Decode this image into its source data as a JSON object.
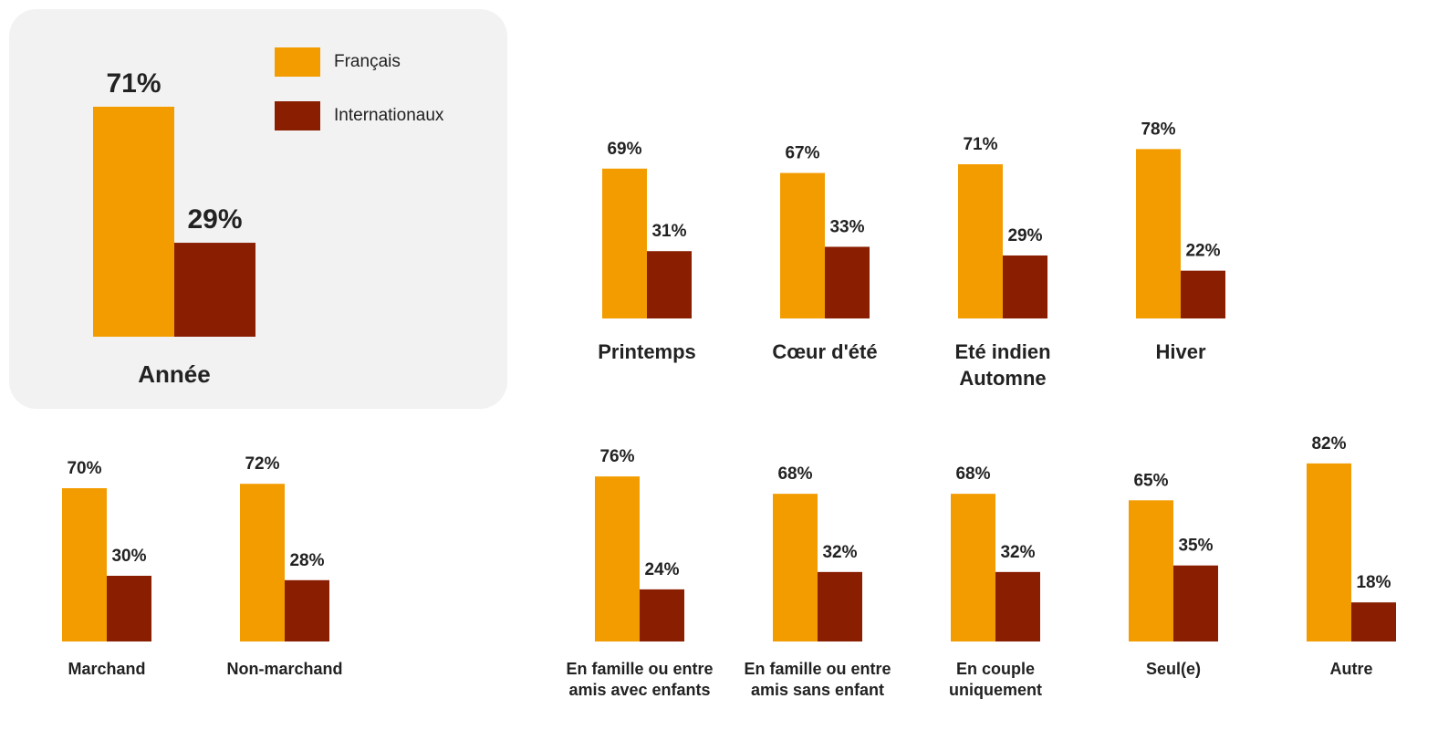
{
  "chart_data": [
    {
      "type": "bar",
      "categories": [
        "Année"
      ],
      "series": [
        {
          "name": "Français",
          "color": "#f39c00",
          "values": [
            71
          ],
          "value_labels": [
            "71%"
          ]
        },
        {
          "name": "Internationaux",
          "color": "#8a1e00",
          "values": [
            29
          ],
          "value_labels": [
            "29%"
          ]
        }
      ]
    },
    {
      "type": "bar",
      "categories": [
        "Printemps",
        "Cœur d'été",
        "Eté indien Automne",
        "Hiver"
      ],
      "series": [
        {
          "color": "#f39c00",
          "values": [
            69,
            67,
            71,
            78
          ],
          "value_labels": [
            "69%",
            "67%",
            "71%",
            "78%"
          ]
        },
        {
          "color": "#8a1e00",
          "values": [
            31,
            33,
            29,
            22
          ],
          "value_labels": [
            "31%",
            "33%",
            "29%",
            "22%"
          ]
        }
      ]
    },
    {
      "type": "bar",
      "categories": [
        "Marchand",
        "Non-marchand"
      ],
      "series": [
        {
          "color": "#f39c00",
          "values": [
            70,
            72
          ],
          "value_labels": [
            "70%",
            "72%"
          ]
        },
        {
          "color": "#8a1e00",
          "values": [
            30,
            28
          ],
          "value_labels": [
            "30%",
            "28%"
          ]
        }
      ]
    },
    {
      "type": "bar",
      "categories": [
        "En famille ou entre amis avec enfants",
        "En famille ou entre amis sans enfant",
        "En couple uniquement",
        "Seul(e)",
        "Autre"
      ],
      "series": [
        {
          "color": "#f39c00",
          "values": [
            76,
            68,
            68,
            65,
            82
          ],
          "value_labels": [
            "76%",
            "68%",
            "68%",
            "65%",
            "82%"
          ]
        },
        {
          "color": "#8a1e00",
          "values": [
            24,
            32,
            32,
            35,
            18
          ],
          "value_labels": [
            "24%",
            "32%",
            "32%",
            "35%",
            "18%"
          ]
        }
      ]
    }
  ]
}
